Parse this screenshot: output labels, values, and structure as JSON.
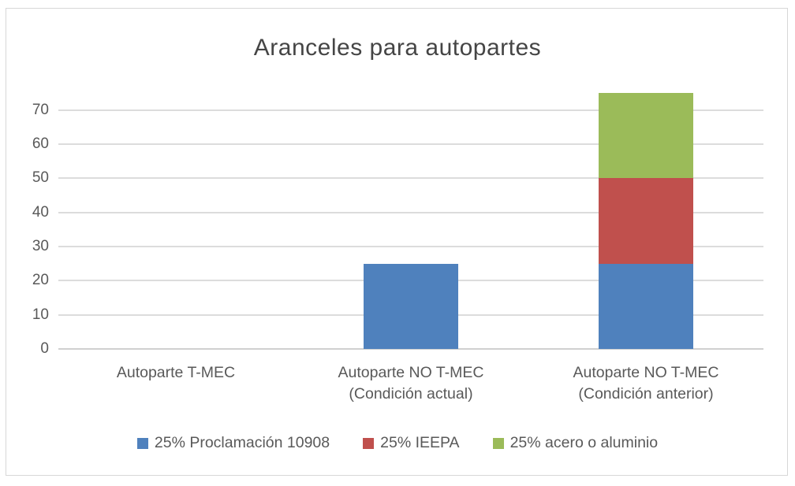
{
  "chart_data": {
    "type": "bar",
    "stacked": true,
    "title": "Aranceles para autopartes",
    "categories": [
      [
        "Autoparte T-MEC"
      ],
      [
        "Autoparte NO T-MEC",
        "(Condición actual)"
      ],
      [
        "Autoparte NO T-MEC",
        "(Condición anterior)"
      ]
    ],
    "series": [
      {
        "name": "25% Proclamación 10908",
        "color": "#4F81BD",
        "values": [
          0,
          25,
          25
        ]
      },
      {
        "name": "25% IEEPA",
        "color": "#C0504D",
        "values": [
          0,
          0,
          25
        ]
      },
      {
        "name": "25% acero o aluminio",
        "color": "#9BBB59",
        "values": [
          0,
          0,
          25
        ]
      }
    ],
    "y_ticks": [
      0,
      10,
      20,
      30,
      40,
      50,
      60,
      70
    ],
    "ylim": [
      0,
      75
    ],
    "grid": true,
    "legend_position": "bottom"
  },
  "style_colors": {
    "gridline": "#dcdcdc",
    "axis_line": "#d0d0d0",
    "chart_border": "#d7d7d7",
    "title_text": "#454545",
    "axis_text": "#595959",
    "background": "#ffffff"
  }
}
